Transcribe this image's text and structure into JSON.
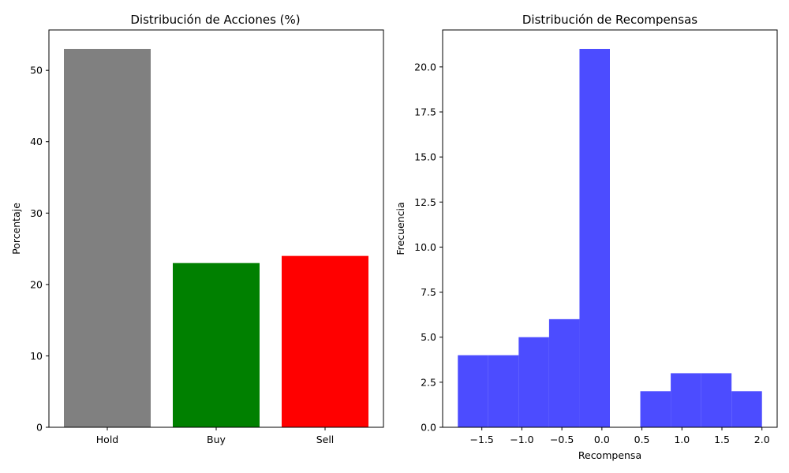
{
  "chart_data": [
    {
      "type": "bar",
      "title": "Distribución de Acciones (%)",
      "xlabel": "",
      "ylabel": "Porcentaje",
      "categories": [
        "Hold",
        "Buy",
        "Sell"
      ],
      "values": [
        53,
        23,
        24
      ],
      "colors": [
        "#808080",
        "#008000",
        "#ff0000"
      ],
      "ylim": [
        0,
        55.65
      ],
      "yticks": [
        0,
        10,
        20,
        30,
        40,
        50
      ],
      "ytick_labels": [
        "0",
        "10",
        "20",
        "30",
        "40",
        "50"
      ],
      "grid": false,
      "legend": "none"
    },
    {
      "type": "bar",
      "subtype": "histogram",
      "title": "Distribución de Recompensas",
      "xlabel": "Recompensa",
      "ylabel": "Frecuencia",
      "bins": [
        {
          "x0": -1.8,
          "x1": -1.42,
          "count": 4
        },
        {
          "x0": -1.42,
          "x1": -1.04,
          "count": 4
        },
        {
          "x0": -1.04,
          "x1": -0.66,
          "count": 5
        },
        {
          "x0": -0.66,
          "x1": -0.28,
          "count": 6
        },
        {
          "x0": -0.28,
          "x1": 0.1,
          "count": 21
        },
        {
          "x0": 0.1,
          "x1": 0.48,
          "count": 0
        },
        {
          "x0": 0.48,
          "x1": 0.86,
          "count": 2
        },
        {
          "x0": 0.86,
          "x1": 1.24,
          "count": 3
        },
        {
          "x0": 1.24,
          "x1": 1.62,
          "count": 3
        },
        {
          "x0": 1.62,
          "x1": 2.0,
          "count": 2
        }
      ],
      "color": "#4c4cff",
      "xlim": [
        -1.99,
        2.19
      ],
      "ylim": [
        0,
        22.05
      ],
      "xticks": [
        -1.5,
        -1.0,
        -0.5,
        0.0,
        0.5,
        1.0,
        1.5,
        2.0
      ],
      "xtick_labels": [
        "−1.5",
        "−1.0",
        "−0.5",
        "0.0",
        "0.5",
        "1.0",
        "1.5",
        "2.0"
      ],
      "yticks": [
        0,
        2.5,
        5,
        7.5,
        10,
        12.5,
        15,
        17.5,
        20
      ],
      "ytick_labels": [
        "0.0",
        "2.5",
        "5.0",
        "7.5",
        "10.0",
        "12.5",
        "15.0",
        "17.5",
        "20.0"
      ],
      "grid": false,
      "legend": "none"
    }
  ]
}
